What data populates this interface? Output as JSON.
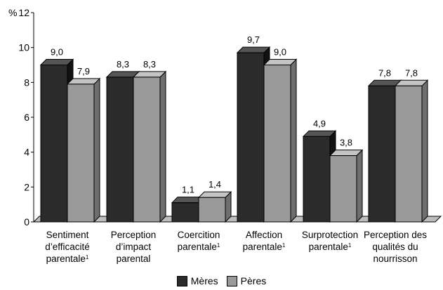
{
  "chart_data": {
    "type": "bar",
    "y_unit": "%",
    "ylim": [
      0,
      12
    ],
    "yticks": [
      0,
      2,
      4,
      6,
      8,
      10,
      12
    ],
    "categories": [
      {
        "lines": [
          "Sentiment",
          "d’efficacité",
          "parentale"
        ],
        "footnote": "1"
      },
      {
        "lines": [
          "Perception",
          "d’impact",
          "parental"
        ],
        "footnote": ""
      },
      {
        "lines": [
          "Coercition",
          "parentale"
        ],
        "footnote": "1"
      },
      {
        "lines": [
          "Affection",
          "parentale"
        ],
        "footnote": "1"
      },
      {
        "lines": [
          "Surprotection",
          "parentale"
        ],
        "footnote": "1"
      },
      {
        "lines": [
          "Perception des",
          "qualités du",
          "nourrisson"
        ],
        "footnote": ""
      }
    ],
    "series": [
      {
        "name": "Mères",
        "values": [
          9.0,
          8.3,
          1.1,
          9.7,
          4.9,
          7.8
        ],
        "labels": [
          "9,0",
          "8,3",
          "1,1",
          "9,7",
          "4,9",
          "7,8"
        ],
        "color": "#2b2b2b"
      },
      {
        "name": "Pères",
        "values": [
          7.9,
          8.3,
          1.4,
          9.0,
          3.8,
          7.8
        ],
        "labels": [
          "7,9",
          "8,3",
          "1,4",
          "9,0",
          "3,8",
          "7,8"
        ],
        "color": "#9a9a9a"
      }
    ],
    "grid": false,
    "legend": "bottom-center"
  }
}
